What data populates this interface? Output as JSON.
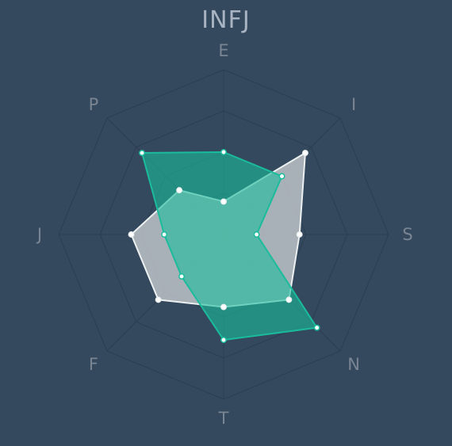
{
  "chart_data": {
    "type": "radar",
    "title": "INFJ",
    "axes": [
      "E",
      "I",
      "S",
      "N",
      "T",
      "F",
      "J",
      "P"
    ],
    "rmax": 5,
    "grid_levels": 4,
    "series": [
      {
        "values": [
          1.0,
          3.5,
          2.3,
          2.8,
          2.2,
          2.8,
          2.8,
          1.9
        ],
        "color": "#ecf0f1",
        "fill": "#bdc3c7",
        "fill_opacity": 0.85
      },
      {
        "values": [
          2.5,
          2.5,
          1.0,
          4.0,
          3.2,
          1.8,
          1.8,
          3.5
        ],
        "color": "#1abc9c",
        "fill": "#1abc9c",
        "fill_opacity": 0.6
      }
    ],
    "grid_color": "#2c3e50",
    "background": "#34495e"
  }
}
